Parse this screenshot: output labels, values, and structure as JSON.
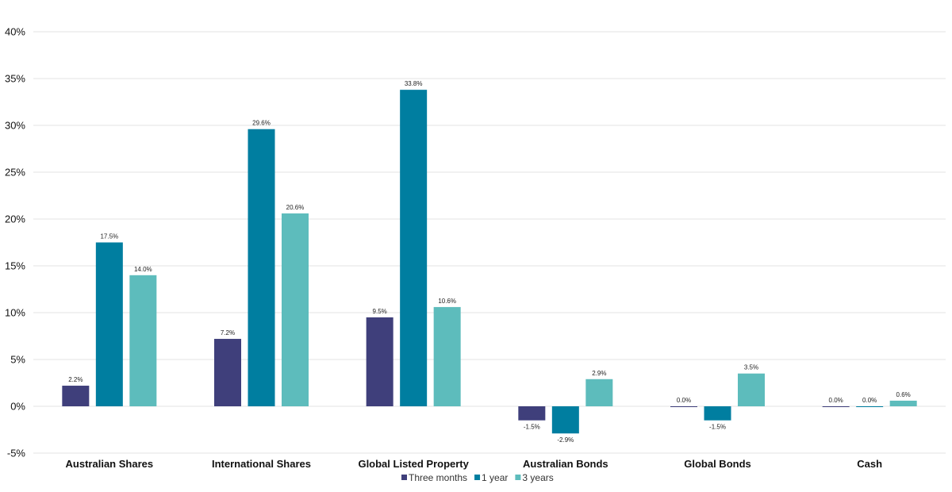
{
  "chart_data": {
    "type": "bar",
    "categories": [
      "Australian Shares",
      "International Shares",
      "Global Listed Property",
      "Australian Bonds",
      "Global Bonds",
      "Cash"
    ],
    "series": [
      {
        "name": "Three months",
        "color": "#3f3f7b",
        "values": [
          2.2,
          7.2,
          9.5,
          -1.5,
          0.0,
          0.0
        ],
        "labels": [
          "2.2%",
          "7.2%",
          "9.5%",
          "-1.5%",
          "0.0%",
          "0.0%"
        ]
      },
      {
        "name": "1 year",
        "color": "#007ea0",
        "values": [
          17.5,
          29.6,
          33.8,
          -2.9,
          -1.5,
          0.0
        ],
        "labels": [
          "17.5%",
          "29.6%",
          "33.8%",
          "-2.9%",
          "-1.5%",
          "0.0%"
        ]
      },
      {
        "name": "3 years",
        "color": "#5dbcbc",
        "values": [
          14.0,
          20.6,
          10.6,
          2.9,
          3.5,
          0.6
        ],
        "labels": [
          "14.0%",
          "20.6%",
          "10.6%",
          "2.9%",
          "3.5%",
          "0.6%"
        ]
      }
    ],
    "yticks": [
      -5,
      0,
      5,
      10,
      15,
      20,
      25,
      30,
      35,
      40
    ],
    "ytick_labels": [
      "-5%",
      "0%",
      "5%",
      "10%",
      "15%",
      "20%",
      "25%",
      "30%",
      "35%",
      "40%"
    ],
    "ylim": [
      -5,
      40
    ],
    "grid": true,
    "legend_position": "bottom",
    "title": "",
    "xlabel": "",
    "ylabel": ""
  }
}
